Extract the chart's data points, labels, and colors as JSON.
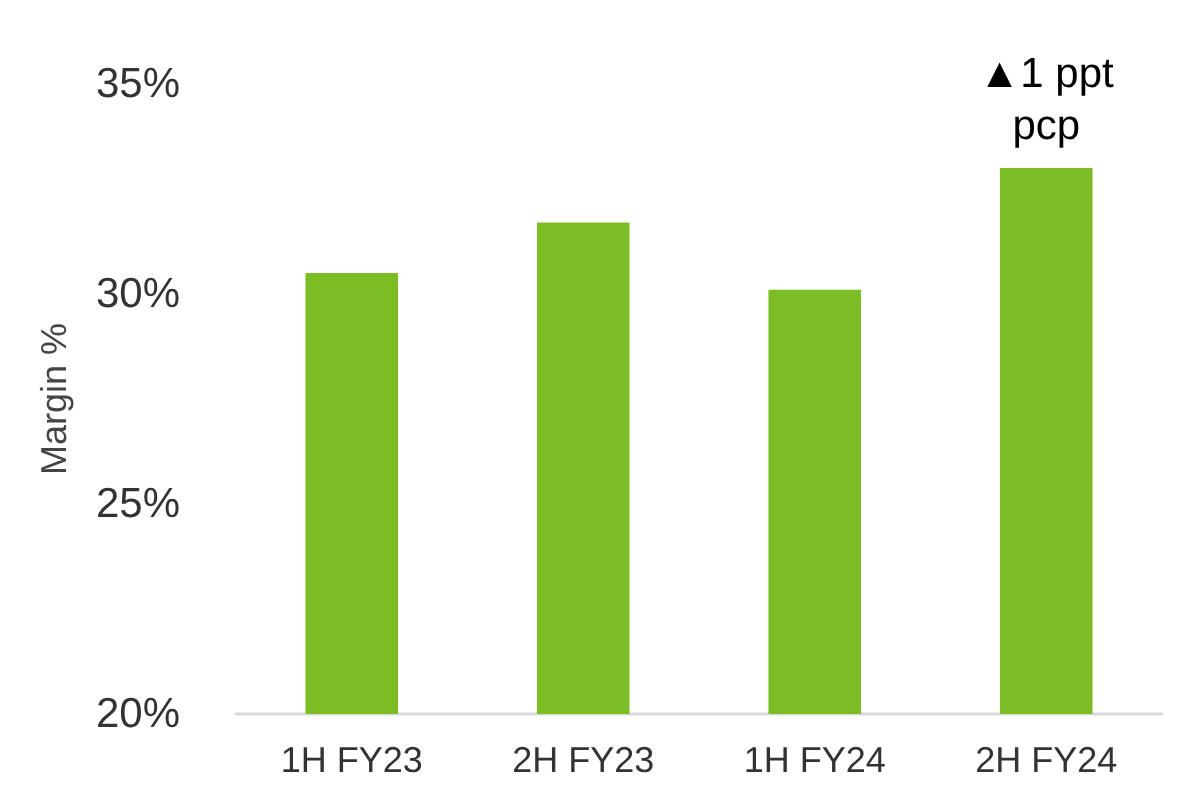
{
  "chart_data": {
    "type": "bar",
    "ylabel": "Margin %",
    "categories": [
      "1H FY23",
      "2H FY23",
      "1H FY24",
      "2H FY24"
    ],
    "values": [
      30.5,
      31.7,
      30.1,
      33.0
    ],
    "color": "#7cbd26",
    "ylim": [
      20,
      35
    ],
    "yticks": [
      {
        "value": 20,
        "label": "20%"
      },
      {
        "value": 25,
        "label": "25%"
      },
      {
        "value": 30,
        "label": "30%"
      },
      {
        "value": 35,
        "label": "35%"
      }
    ],
    "grid": false,
    "annotations": [
      {
        "text": "▲1 ppt\npcp",
        "x": "2H FY24",
        "y": 33.0
      }
    ]
  }
}
